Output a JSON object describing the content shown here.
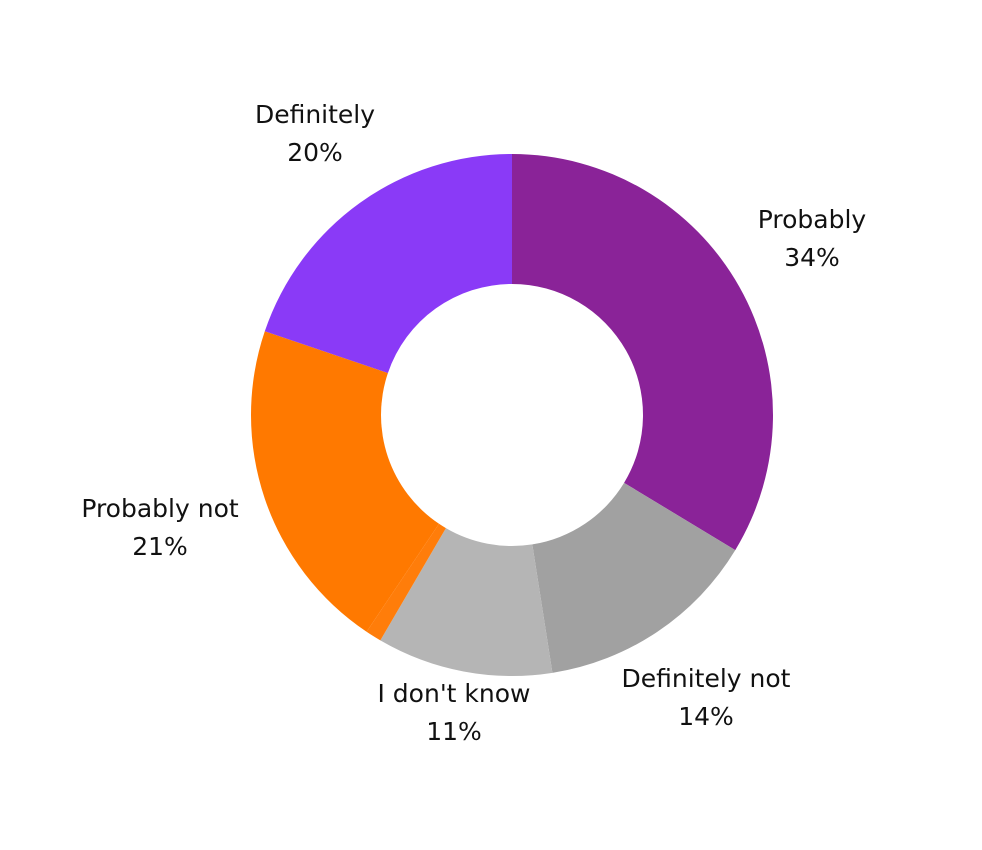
{
  "chart_data": {
    "type": "pie",
    "donut": true,
    "title": "",
    "slices": [
      {
        "label": "Probably",
        "value": 34,
        "value_label": "34%",
        "color": "#8A2398"
      },
      {
        "label": "Definitely not",
        "value": 14,
        "value_label": "14%",
        "color": "#A1A1A1"
      },
      {
        "label": "I don't know",
        "value": 11,
        "value_label": "11%",
        "color": "#B5B5B5"
      },
      {
        "label": "",
        "value": 1,
        "value_label": "",
        "color": "#FF7D0A"
      },
      {
        "label": "Probably not",
        "value": 21,
        "value_label": "21%",
        "color": "#FF7900"
      },
      {
        "label": "Definitely",
        "value": 20,
        "value_label": "20%",
        "color": "#8A3AF7"
      }
    ],
    "start_angle": "top",
    "direction": "clockwise",
    "legend": "none"
  }
}
